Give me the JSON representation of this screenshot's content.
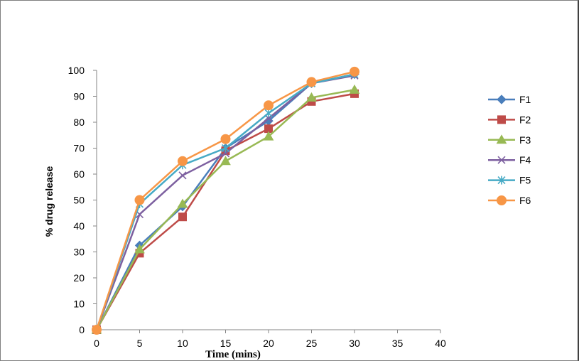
{
  "chart_data": {
    "type": "line",
    "title": "",
    "xlabel": "Time (mins)",
    "ylabel": "% drug release",
    "xlim": [
      0,
      40
    ],
    "ylim": [
      0,
      100
    ],
    "xticks": [
      0,
      5,
      10,
      15,
      20,
      25,
      30,
      35,
      40
    ],
    "yticks": [
      0,
      10,
      20,
      30,
      40,
      50,
      60,
      70,
      80,
      90,
      100
    ],
    "grid": false,
    "legend_position": "right",
    "x": [
      0,
      5,
      10,
      15,
      20,
      25,
      30
    ],
    "series": [
      {
        "name": "F1",
        "color": "#4A7EBB",
        "marker": "diamond",
        "values": [
          0,
          32.5,
          47.5,
          70.0,
          80.5,
          95.0,
          98.5
        ]
      },
      {
        "name": "F2",
        "color": "#BE4B48",
        "marker": "square",
        "values": [
          0,
          29.5,
          43.5,
          69.0,
          77.5,
          88.0,
          91.0
        ]
      },
      {
        "name": "F3",
        "color": "#98B954",
        "marker": "triangle",
        "values": [
          0,
          31.0,
          48.5,
          65.0,
          74.5,
          89.5,
          92.5
        ]
      },
      {
        "name": "F4",
        "color": "#7D60A0",
        "marker": "x",
        "values": [
          0,
          44.5,
          59.5,
          68.0,
          81.5,
          95.0,
          98.0
        ]
      },
      {
        "name": "F5",
        "color": "#46AAC5",
        "marker": "star",
        "values": [
          0,
          48.5,
          63.5,
          70.0,
          83.5,
          95.0,
          98.5
        ]
      },
      {
        "name": "F6",
        "color": "#F79646",
        "marker": "circle",
        "values": [
          0,
          50.0,
          65.0,
          73.5,
          86.5,
          95.5,
          99.5
        ]
      }
    ]
  }
}
